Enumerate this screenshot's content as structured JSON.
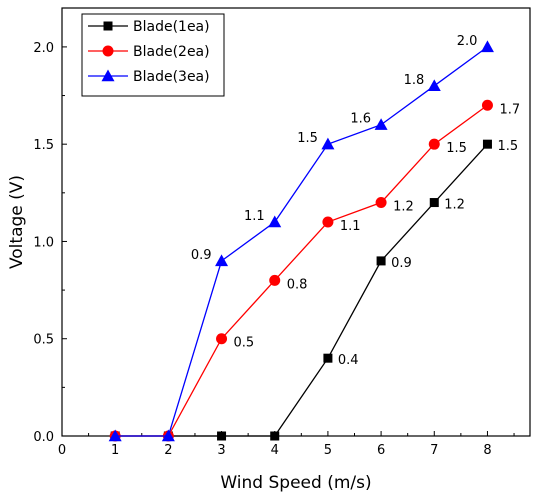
{
  "chart_data": {
    "type": "line",
    "xlabel": "Wind Speed (m/s)",
    "ylabel": "Voltage (V)",
    "xlim": [
      0,
      8.8
    ],
    "ylim": [
      0,
      2.2
    ],
    "xticks": [
      "0",
      "1",
      "2",
      "3",
      "4",
      "5",
      "6",
      "7",
      "8"
    ],
    "yticks": [
      "0.0",
      "0.5",
      "1.0",
      "1.5",
      "2.0"
    ],
    "x": [
      1,
      2,
      3,
      4,
      5,
      6,
      7,
      8
    ],
    "legend_position": "top-left",
    "grid": false,
    "series": [
      {
        "name": "Blade(1ea)",
        "color": "#000000",
        "marker": "square",
        "values": [
          0.0,
          0.0,
          0.0,
          0.0,
          0.4,
          0.9,
          1.2,
          1.5
        ],
        "labels": [
          "",
          "",
          "",
          "",
          "0.4",
          "0.9",
          "1.2",
          "1.5"
        ]
      },
      {
        "name": "Blade(2ea)",
        "color": "#ff0000",
        "marker": "circle",
        "values": [
          0.0,
          0.0,
          0.5,
          0.8,
          1.1,
          1.2,
          1.5,
          1.7
        ],
        "labels": [
          "",
          "",
          "0.5",
          "0.8",
          "1.1",
          "1.2",
          "1.5",
          "1.7"
        ]
      },
      {
        "name": "Blade(3ea)",
        "color": "#0000ff",
        "marker": "triangle",
        "values": [
          0.0,
          0.0,
          0.9,
          1.1,
          1.5,
          1.6,
          1.8,
          2.0
        ],
        "labels": [
          "",
          "",
          "0.9",
          "1.1",
          "1.5",
          "1.6",
          "1.8",
          "2.0"
        ]
      }
    ]
  }
}
